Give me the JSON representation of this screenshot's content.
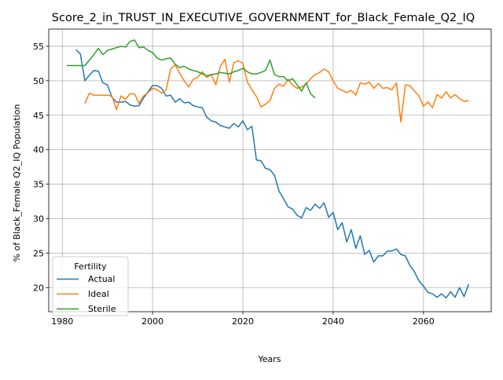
{
  "chart_data": {
    "type": "line",
    "title": "Score_2_in_TRUST_IN_EXECUTIVE_GOVERNMENT_for_Black_Female_Q2_IQ",
    "xlabel": "Years",
    "ylabel": "% of Black_Female Q2_IQ Population",
    "xlim": [
      1977,
      2075
    ],
    "ylim": [
      16.5,
      57.5
    ],
    "xticks": [
      1980,
      2000,
      2020,
      2040,
      2060
    ],
    "yticks": [
      20,
      25,
      30,
      35,
      40,
      45,
      50,
      55
    ],
    "grid": true,
    "legend": {
      "title": "Fertility",
      "placement": "lower-left"
    },
    "series": [
      {
        "name": "Actual",
        "color": "#1f77b4",
        "x": [
          1983,
          1984,
          1985,
          1986,
          1987,
          1988,
          1989,
          1990,
          1991,
          1992,
          1993,
          1994,
          1995,
          1996,
          1997,
          1998,
          1999,
          2000,
          2001,
          2002,
          2003,
          2004,
          2005,
          2006,
          2007,
          2008,
          2009,
          2010,
          2011,
          2012,
          2013,
          2014,
          2015,
          2016,
          2017,
          2018,
          2019,
          2020,
          2021,
          2022,
          2023,
          2024,
          2025,
          2026,
          2027,
          2028,
          2029,
          2030,
          2031,
          2032,
          2033,
          2034,
          2035,
          2036,
          2037,
          2038,
          2039,
          2040,
          2041,
          2042,
          2043,
          2044,
          2045,
          2046,
          2047,
          2048,
          2049,
          2050,
          2051,
          2052,
          2053,
          2054,
          2055,
          2056,
          2057,
          2058,
          2059,
          2060,
          2061,
          2062,
          2063,
          2064,
          2065,
          2066,
          2067,
          2068,
          2069,
          2070
        ],
        "y": [
          54.5,
          53.9,
          50.0,
          50.8,
          51.5,
          51.4,
          49.7,
          49.4,
          47.6,
          46.9,
          46.9,
          47.0,
          46.5,
          46.3,
          46.4,
          47.5,
          48.4,
          49.3,
          49.3,
          48.9,
          47.8,
          47.9,
          46.9,
          47.4,
          46.8,
          46.9,
          46.4,
          46.2,
          46.1,
          44.7,
          44.2,
          44.0,
          43.5,
          43.3,
          43.1,
          43.8,
          43.3,
          44.2,
          42.9,
          43.4,
          38.5,
          38.4,
          37.3,
          37.1,
          36.3,
          34.0,
          32.9,
          31.7,
          31.4,
          30.5,
          30.1,
          31.6,
          31.2,
          32.1,
          31.5,
          32.3,
          30.2,
          30.9,
          28.4,
          29.4,
          26.6,
          28.4,
          25.7,
          27.5,
          24.8,
          25.4,
          23.7,
          24.6,
          24.6,
          25.3,
          25.3,
          25.6,
          24.8,
          24.6,
          23.2,
          22.3,
          21.0,
          20.2,
          19.3,
          19.1,
          18.6,
          19.1,
          18.5,
          19.4,
          18.6,
          20.0,
          18.7,
          20.5
        ]
      },
      {
        "name": "Ideal",
        "color": "#ff7f0e",
        "x": [
          1985,
          1986,
          1987,
          1988,
          1989,
          1990,
          1991,
          1992,
          1993,
          1994,
          1995,
          1996,
          1997,
          1998,
          1999,
          2000,
          2001,
          2002,
          2003,
          2004,
          2005,
          2006,
          2007,
          2008,
          2009,
          2010,
          2011,
          2012,
          2013,
          2014,
          2015,
          2016,
          2017,
          2018,
          2019,
          2020,
          2021,
          2022,
          2023,
          2024,
          2025,
          2026,
          2027,
          2028,
          2029,
          2030,
          2031,
          2032,
          2033,
          2034,
          2035,
          2036,
          2037,
          2038,
          2039,
          2040,
          2041,
          2042,
          2043,
          2044,
          2045,
          2046,
          2047,
          2048,
          2049,
          2050,
          2051,
          2052,
          2053,
          2054,
          2055,
          2056,
          2057,
          2058,
          2059,
          2060,
          2061,
          2062,
          2063,
          2064,
          2065,
          2066,
          2067,
          2068,
          2069,
          2070
        ],
        "y": [
          46.7,
          48.2,
          47.9,
          47.9,
          47.9,
          47.9,
          47.8,
          45.8,
          47.8,
          47.3,
          48.1,
          48.1,
          46.7,
          47.8,
          48.3,
          48.9,
          48.7,
          48.2,
          48.7,
          51.7,
          52.3,
          51.1,
          50.0,
          49.1,
          50.2,
          50.5,
          51.3,
          50.5,
          50.9,
          49.4,
          52.1,
          53.1,
          49.8,
          52.6,
          52.9,
          52.5,
          49.8,
          48.7,
          47.7,
          46.2,
          46.6,
          47.1,
          48.9,
          49.5,
          49.2,
          50.2,
          49.4,
          48.9,
          49.1,
          49.5,
          50.3,
          50.9,
          51.2,
          51.7,
          51.3,
          50.0,
          48.9,
          48.6,
          48.3,
          48.6,
          47.9,
          49.7,
          49.5,
          49.8,
          48.9,
          49.6,
          48.9,
          49.0,
          48.7,
          49.7,
          44.0,
          49.4,
          49.3,
          48.5,
          47.8,
          46.3,
          46.9,
          46.1,
          48.0,
          47.5,
          48.4,
          47.5,
          48.0,
          47.4,
          47.0,
          47.1
        ]
      },
      {
        "name": "Sterile",
        "color": "#2ca02c",
        "x": [
          1981,
          1982,
          1983,
          1984,
          1985,
          1986,
          1987,
          1988,
          1989,
          1990,
          1991,
          1992,
          1993,
          1994,
          1995,
          1996,
          1997,
          1998,
          1999,
          2000,
          2001,
          2002,
          2003,
          2004,
          2005,
          2006,
          2007,
          2008,
          2009,
          2010,
          2011,
          2012,
          2013,
          2014,
          2015,
          2016,
          2017,
          2018,
          2019,
          2020,
          2021,
          2022,
          2023,
          2024,
          2025,
          2026,
          2027,
          2028,
          2029,
          2030,
          2031,
          2032,
          2033,
          2034,
          2035,
          2036
        ],
        "y": [
          52.2,
          52.2,
          52.2,
          52.2,
          52.2,
          53.0,
          53.8,
          54.7,
          53.8,
          54.4,
          54.6,
          54.8,
          55.0,
          54.9,
          55.7,
          55.9,
          54.8,
          54.9,
          54.4,
          54.1,
          53.3,
          53.0,
          53.2,
          53.3,
          52.4,
          51.9,
          52.1,
          51.7,
          51.5,
          51.3,
          51.0,
          50.7,
          50.9,
          51.0,
          51.2,
          51.1,
          51.0,
          51.3,
          51.5,
          51.8,
          51.3,
          51.0,
          51.0,
          51.2,
          51.5,
          53.0,
          50.9,
          50.6,
          50.6,
          50.0,
          50.3,
          49.4,
          48.5,
          49.7,
          48.1,
          47.5
        ]
      }
    ]
  }
}
